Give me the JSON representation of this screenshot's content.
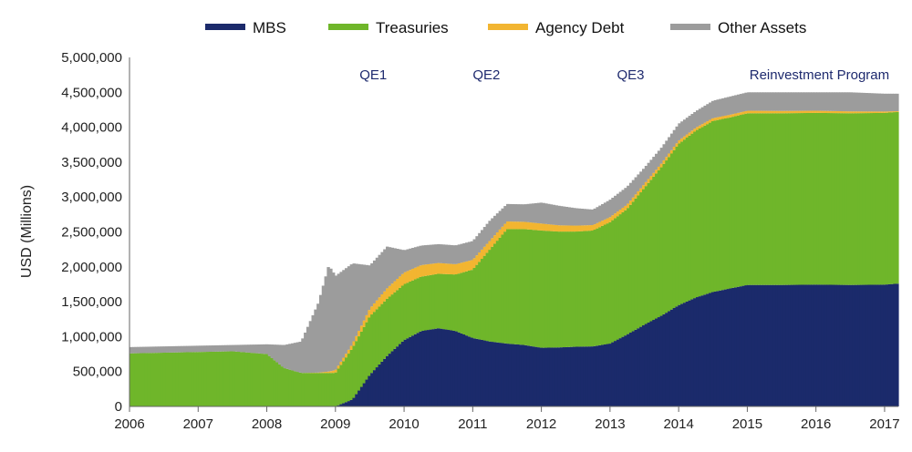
{
  "chart_data": {
    "type": "area",
    "xlabel": "",
    "ylabel": "USD (Millions)",
    "xlim": [
      2006,
      2017.2
    ],
    "ylim": [
      0,
      5000000
    ],
    "xticks": [
      2006,
      2007,
      2008,
      2009,
      2010,
      2011,
      2012,
      2013,
      2014,
      2015,
      2016,
      2017
    ],
    "yticks": [
      0,
      500000,
      1000000,
      1500000,
      2000000,
      2500000,
      3000000,
      3500000,
      4000000,
      4500000,
      5000000
    ],
    "ytick_labels": [
      "0",
      "500,000",
      "1,000,000",
      "1,500,000",
      "2,000,000",
      "2,500,000",
      "3,000,000",
      "3,500,000",
      "4,000,000",
      "4,500,000",
      "5,000,000"
    ],
    "legend_position": "top-center",
    "stacked": true,
    "x": [
      2006.0,
      2006.5,
      2007.0,
      2007.5,
      2008.0,
      2008.25,
      2008.5,
      2008.75,
      2008.9,
      2009.0,
      2009.25,
      2009.5,
      2009.75,
      2010.0,
      2010.25,
      2010.5,
      2010.75,
      2011.0,
      2011.25,
      2011.5,
      2011.75,
      2012.0,
      2012.25,
      2012.5,
      2012.75,
      2013.0,
      2013.25,
      2013.5,
      2013.75,
      2014.0,
      2014.25,
      2014.5,
      2014.75,
      2015.0,
      2015.5,
      2016.0,
      2016.5,
      2017.0,
      2017.2
    ],
    "series": [
      {
        "name": "MBS",
        "color": "#1b2a6b",
        "values": [
          0,
          0,
          0,
          0,
          0,
          0,
          0,
          0,
          0,
          0,
          100000,
          450000,
          720000,
          950000,
          1080000,
          1120000,
          1080000,
          980000,
          930000,
          900000,
          880000,
          840000,
          845000,
          855000,
          860000,
          900000,
          1030000,
          1170000,
          1300000,
          1450000,
          1560000,
          1640000,
          1690000,
          1740000,
          1740000,
          1745000,
          1740000,
          1745000,
          1760000
        ]
      },
      {
        "name": "Treasuries",
        "color": "#6fb62a",
        "values": [
          760000,
          770000,
          780000,
          790000,
          750000,
          550000,
          480000,
          480000,
          480000,
          480000,
          740000,
          840000,
          820000,
          800000,
          780000,
          780000,
          810000,
          980000,
          1320000,
          1640000,
          1660000,
          1680000,
          1660000,
          1650000,
          1660000,
          1740000,
          1800000,
          1960000,
          2130000,
          2310000,
          2390000,
          2450000,
          2450000,
          2460000,
          2460000,
          2460000,
          2460000,
          2460000,
          2460000
        ]
      },
      {
        "name": "Agency Debt",
        "color": "#f2b531",
        "values": [
          0,
          0,
          0,
          0,
          0,
          0,
          0,
          5000,
          20000,
          40000,
          60000,
          110000,
          150000,
          168000,
          165000,
          155000,
          147000,
          140000,
          125000,
          110000,
          105000,
          100000,
          90000,
          85000,
          78000,
          72000,
          62000,
          57000,
          52000,
          47000,
          43000,
          40000,
          39000,
          36000,
          33000,
          31000,
          27000,
          20000,
          10000
        ]
      },
      {
        "name": "Other Assets",
        "color": "#9c9c9c",
        "values": [
          90000,
          90000,
          90000,
          90000,
          140000,
          330000,
          450000,
          1000000,
          1520000,
          1350000,
          1150000,
          620000,
          600000,
          320000,
          280000,
          270000,
          270000,
          270000,
          290000,
          250000,
          250000,
          300000,
          280000,
          250000,
          222000,
          250000,
          258000,
          233000,
          228000,
          243000,
          237000,
          250000,
          261000,
          264000,
          267000,
          264000,
          273000,
          255000,
          250000
        ]
      }
    ],
    "annotations": [
      {
        "text": "QE1",
        "x": 2009.55,
        "y": 4750000
      },
      {
        "text": "QE2",
        "x": 2011.2,
        "y": 4750000
      },
      {
        "text": "QE3",
        "x": 2013.3,
        "y": 4750000
      },
      {
        "text": "Reinvestment Program",
        "x": 2016.05,
        "y": 4750000
      }
    ]
  }
}
